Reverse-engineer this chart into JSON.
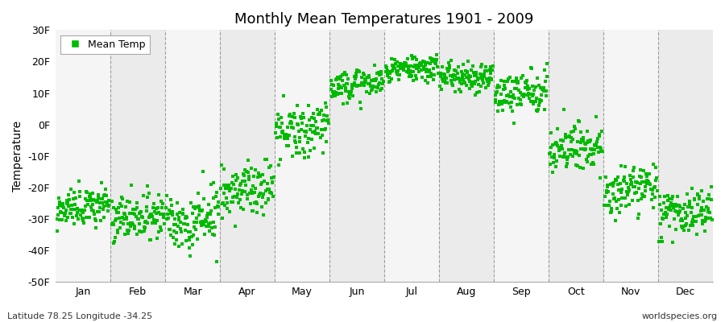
{
  "title": "Monthly Mean Temperatures 1901 - 2009",
  "ylabel": "Temperature",
  "footer_left": "Latitude 78.25 Longitude -34.25",
  "footer_right": "worldspecies.org",
  "legend_label": "Mean Temp",
  "ylim": [
    -50,
    30
  ],
  "yticks": [
    -50,
    -40,
    -30,
    -20,
    -10,
    0,
    10,
    20,
    30
  ],
  "ytick_labels": [
    "-50F",
    "-40F",
    "-30F",
    "-20F",
    "-10F",
    "0F",
    "10F",
    "20F",
    "30F"
  ],
  "months": [
    "Jan",
    "Feb",
    "Mar",
    "Apr",
    "May",
    "Jun",
    "Jul",
    "Aug",
    "Sep",
    "Oct",
    "Nov",
    "Dec"
  ],
  "dot_color": "#00bb00",
  "bg_color_odd": "#ebebeb",
  "bg_color_even": "#f5f5f5",
  "monthly_mean_F": [
    -26,
    -29,
    -30,
    -20,
    -2,
    13,
    18,
    15,
    10,
    -7,
    -21,
    -28
  ],
  "monthly_std_F": [
    3.0,
    3.5,
    5.0,
    4.0,
    4.5,
    2.5,
    2.0,
    2.5,
    3.0,
    3.5,
    3.5,
    3.5
  ],
  "monthly_trend_F": [
    1.5,
    1.5,
    1.5,
    1.5,
    1.5,
    1.0,
    1.0,
    1.5,
    1.5,
    1.5,
    1.5,
    1.5
  ],
  "n_years": 109,
  "seed": 7
}
